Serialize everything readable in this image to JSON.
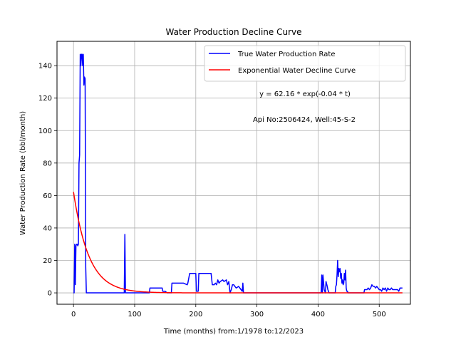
{
  "chart_data": {
    "type": "line",
    "title": "Water Production Decline Curve",
    "xlabel": "Time (months) from:1/1978 to:12/2023",
    "ylabel": "Water Production Rate (bbl/month)",
    "xlim": [
      -27,
      551
    ],
    "ylim": [
      -7,
      155
    ],
    "xticks": [
      0,
      100,
      200,
      300,
      400,
      500
    ],
    "yticks": [
      0,
      20,
      40,
      60,
      80,
      100,
      120,
      140
    ],
    "grid": true,
    "legend_position": "top-right",
    "annotations": [
      "y = 62.16 * exp(-0.04 * t)",
      "Api No:2506424, Well:45-S-2"
    ],
    "series": [
      {
        "name": "True Water Production Rate",
        "color": "#0000ff",
        "points": [
          [
            0,
            0
          ],
          [
            1,
            0
          ],
          [
            2,
            30
          ],
          [
            3,
            5
          ],
          [
            4,
            29
          ],
          [
            5,
            30
          ],
          [
            6,
            30
          ],
          [
            7,
            29
          ],
          [
            8,
            30
          ],
          [
            9,
            80
          ],
          [
            10,
            85
          ],
          [
            11,
            147
          ],
          [
            12,
            140
          ],
          [
            13,
            147
          ],
          [
            14,
            147
          ],
          [
            15,
            140
          ],
          [
            16,
            147
          ],
          [
            17,
            128
          ],
          [
            18,
            133
          ],
          [
            19,
            132
          ],
          [
            20,
            16
          ],
          [
            21,
            0
          ],
          [
            22,
            0
          ],
          [
            30,
            0
          ],
          [
            50,
            0
          ],
          [
            70,
            0
          ],
          [
            83,
            0
          ],
          [
            84,
            36
          ],
          [
            85,
            0
          ],
          [
            86,
            0
          ],
          [
            100,
            0
          ],
          [
            120,
            0
          ],
          [
            124,
            0
          ],
          [
            125,
            3
          ],
          [
            130,
            3
          ],
          [
            140,
            3
          ],
          [
            145,
            3
          ],
          [
            146,
            1
          ],
          [
            150,
            1
          ],
          [
            153,
            0
          ],
          [
            160,
            0
          ],
          [
            161,
            6
          ],
          [
            170,
            6
          ],
          [
            180,
            6
          ],
          [
            186,
            5
          ],
          [
            187,
            6
          ],
          [
            190,
            12
          ],
          [
            195,
            12
          ],
          [
            200,
            12
          ],
          [
            201,
            1
          ],
          [
            204,
            1
          ],
          [
            205,
            12
          ],
          [
            210,
            12
          ],
          [
            215,
            12
          ],
          [
            220,
            12
          ],
          [
            225,
            12
          ],
          [
            227,
            5
          ],
          [
            230,
            5
          ],
          [
            232,
            6
          ],
          [
            234,
            5
          ],
          [
            236,
            8
          ],
          [
            238,
            6
          ],
          [
            240,
            7
          ],
          [
            244,
            8
          ],
          [
            246,
            7
          ],
          [
            250,
            8
          ],
          [
            252,
            5
          ],
          [
            254,
            7
          ],
          [
            256,
            0
          ],
          [
            258,
            2
          ],
          [
            260,
            5
          ],
          [
            262,
            5
          ],
          [
            266,
            3
          ],
          [
            270,
            4
          ],
          [
            274,
            2
          ],
          [
            276,
            1
          ],
          [
            277,
            6
          ],
          [
            278,
            0
          ],
          [
            285,
            0
          ],
          [
            300,
            0
          ],
          [
            340,
            0
          ],
          [
            380,
            0
          ],
          [
            405,
            0
          ],
          [
            406,
            11
          ],
          [
            407,
            0
          ],
          [
            408,
            11
          ],
          [
            410,
            2
          ],
          [
            412,
            0
          ],
          [
            413,
            7
          ],
          [
            415,
            4
          ],
          [
            416,
            2
          ],
          [
            418,
            0
          ],
          [
            420,
            0
          ],
          [
            428,
            0
          ],
          [
            429,
            4
          ],
          [
            430,
            5
          ],
          [
            431,
            11
          ],
          [
            432,
            20
          ],
          [
            433,
            10
          ],
          [
            434,
            15
          ],
          [
            435,
            13
          ],
          [
            436,
            15
          ],
          [
            437,
            9
          ],
          [
            438,
            12
          ],
          [
            439,
            6
          ],
          [
            440,
            8
          ],
          [
            441,
            5
          ],
          [
            442,
            6
          ],
          [
            443,
            12
          ],
          [
            444,
            8
          ],
          [
            445,
            14
          ],
          [
            446,
            3
          ],
          [
            447,
            1
          ],
          [
            448,
            1
          ],
          [
            449,
            0
          ],
          [
            460,
            0
          ],
          [
            470,
            0
          ],
          [
            475,
            0
          ],
          [
            476,
            2
          ],
          [
            480,
            2
          ],
          [
            482,
            3
          ],
          [
            484,
            2
          ],
          [
            486,
            3
          ],
          [
            488,
            5
          ],
          [
            490,
            4
          ],
          [
            492,
            4
          ],
          [
            494,
            3
          ],
          [
            496,
            4
          ],
          [
            498,
            3
          ],
          [
            500,
            2
          ],
          [
            502,
            2
          ],
          [
            504,
            1
          ],
          [
            506,
            3
          ],
          [
            508,
            2
          ],
          [
            510,
            3
          ],
          [
            512,
            1
          ],
          [
            514,
            3
          ],
          [
            516,
            2
          ],
          [
            518,
            2
          ],
          [
            520,
            3
          ],
          [
            522,
            2
          ],
          [
            524,
            2
          ],
          [
            526,
            2
          ],
          [
            528,
            2
          ],
          [
            530,
            2
          ],
          [
            532,
            1
          ],
          [
            534,
            3
          ],
          [
            536,
            3
          ],
          [
            538,
            3
          ]
        ]
      },
      {
        "name": "Exponential Water Decline Curve",
        "color": "#ff0000",
        "function": {
          "a": 62.16,
          "b": -0.04,
          "t_start": 0,
          "t_end": 538
        }
      }
    ]
  }
}
